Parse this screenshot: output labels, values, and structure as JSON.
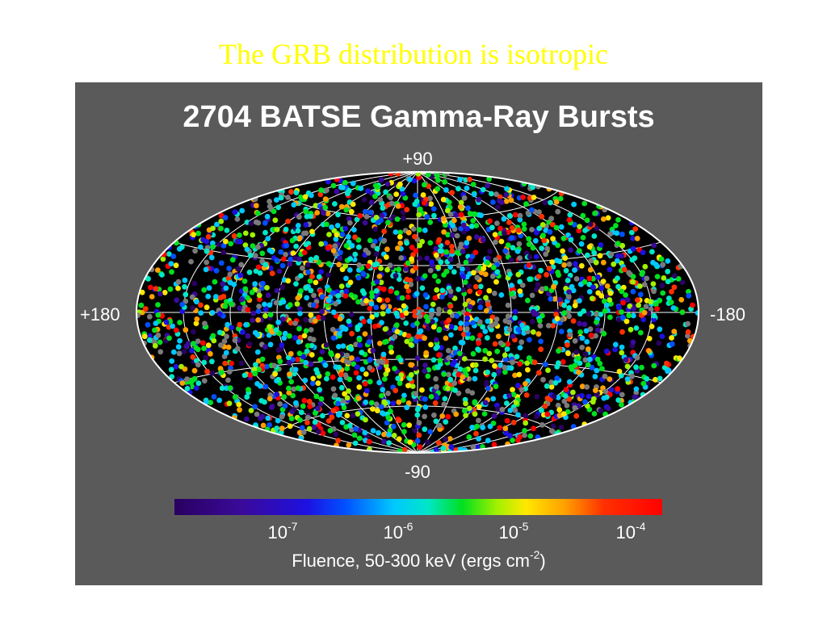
{
  "slide": {
    "title": "The GRB distribution is isotropic"
  },
  "figure": {
    "heading": "2704 BATSE Gamma-Ray Bursts",
    "projection": "aitoff",
    "background_color": "#5a5a5a",
    "sky_color": "#000000",
    "grid_color": "#ffffff",
    "axis_labels": {
      "top": "+90",
      "bottom": "-90",
      "left": "+180",
      "right": "-180"
    },
    "burst_count": 2704,
    "colorbar": {
      "colors": [
        "#2a0060",
        "#3a0a9a",
        "#1e10e0",
        "#0050ff",
        "#00c8ff",
        "#00e6c8",
        "#00e020",
        "#a0f000",
        "#ffe800",
        "#ffa000",
        "#ff3000",
        "#ff0000"
      ],
      "ticks": [
        {
          "base": "10",
          "exp": "-7"
        },
        {
          "base": "10",
          "exp": "-6"
        },
        {
          "base": "10",
          "exp": "-5"
        },
        {
          "base": "10",
          "exp": "-4"
        }
      ],
      "label_main": "Fluence, 50-300 keV (ergs cm",
      "label_exp": "-2",
      "label_end": ")"
    }
  }
}
